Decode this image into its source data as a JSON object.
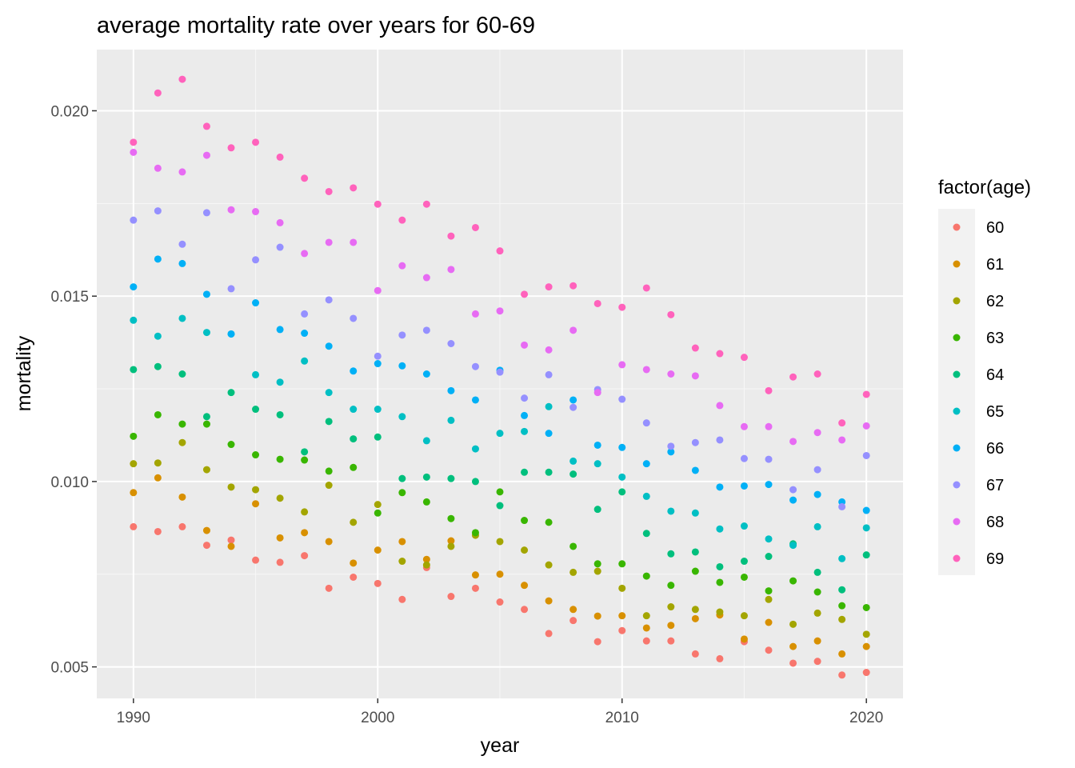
{
  "chart_data": {
    "type": "scatter",
    "title": "average mortality rate over years for 60-69",
    "xlabel": "year",
    "ylabel": "mortality",
    "xlim": [
      1988.5,
      2021.5
    ],
    "ylim": [
      0.00415,
      0.02165
    ],
    "x_ticks": [
      1990,
      2000,
      2010,
      2020
    ],
    "x_tick_labels": [
      "1990",
      "2000",
      "2010",
      "2020"
    ],
    "y_ticks": [
      0.005,
      0.01,
      0.015,
      0.02
    ],
    "y_tick_labels": [
      "0.005",
      "0.010",
      "0.015",
      "0.020"
    ],
    "grid": true,
    "legend_title": "factor(age)",
    "legend_position": "right",
    "x": [
      1990,
      1991,
      1992,
      1993,
      1994,
      1995,
      1996,
      1997,
      1998,
      1999,
      2000,
      2001,
      2002,
      2003,
      2004,
      2005,
      2006,
      2007,
      2008,
      2009,
      2010,
      2011,
      2012,
      2013,
      2014,
      2015,
      2016,
      2017,
      2018,
      2019,
      2020
    ],
    "series": [
      {
        "name": "60",
        "color": "#F8766D",
        "values": [
          0.00878,
          0.00865,
          0.00878,
          0.00828,
          0.00842,
          0.00788,
          0.00782,
          0.008,
          0.00712,
          0.00742,
          0.00725,
          0.00682,
          0.00768,
          0.0069,
          0.00712,
          0.00675,
          0.00655,
          0.0059,
          0.00625,
          0.00568,
          0.00598,
          0.0057,
          0.0057,
          0.00535,
          0.00522,
          0.00568,
          0.00545,
          0.0051,
          0.00515,
          0.00478,
          0.00485
        ]
      },
      {
        "name": "61",
        "color": "#D89000",
        "values": [
          0.0097,
          0.0101,
          0.00958,
          0.00868,
          0.00825,
          0.0094,
          0.00848,
          0.00862,
          0.00838,
          0.0078,
          0.00815,
          0.00838,
          0.0079,
          0.0084,
          0.00748,
          0.0075,
          0.0072,
          0.00678,
          0.00655,
          0.00637,
          0.00638,
          0.00605,
          0.00612,
          0.0063,
          0.0064,
          0.00575,
          0.0062,
          0.00555,
          0.0057,
          0.00535,
          0.00555
        ]
      },
      {
        "name": "62",
        "color": "#A3A500",
        "values": [
          0.01048,
          0.0105,
          0.01105,
          0.01032,
          0.00985,
          0.00978,
          0.00955,
          0.00918,
          0.0099,
          0.0089,
          0.00938,
          0.00785,
          0.00775,
          0.00825,
          0.00855,
          0.00838,
          0.00815,
          0.00775,
          0.00755,
          0.00758,
          0.00712,
          0.00638,
          0.00662,
          0.00655,
          0.00648,
          0.00638,
          0.00682,
          0.00615,
          0.00645,
          0.00628,
          0.00588
        ]
      },
      {
        "name": "63",
        "color": "#39B600",
        "values": [
          0.01122,
          0.0118,
          0.01155,
          0.01155,
          0.011,
          0.01072,
          0.0106,
          0.01058,
          0.01028,
          0.01038,
          0.00915,
          0.0097,
          0.00945,
          0.009,
          0.00862,
          0.00972,
          0.00895,
          0.0089,
          0.00825,
          0.00778,
          0.00778,
          0.00745,
          0.0072,
          0.00758,
          0.00728,
          0.00742,
          0.00705,
          0.00732,
          0.00702,
          0.00665,
          0.0066
        ]
      },
      {
        "name": "64",
        "color": "#00BF7D",
        "values": [
          0.01302,
          0.0131,
          0.0129,
          0.01175,
          0.0124,
          0.01195,
          0.0118,
          0.0108,
          0.01162,
          0.01115,
          0.0112,
          0.01008,
          0.01012,
          0.01008,
          0.01,
          0.00935,
          0.01025,
          0.01025,
          0.0102,
          0.00925,
          0.00972,
          0.0086,
          0.00805,
          0.0081,
          0.0077,
          0.00785,
          0.00798,
          0.00832,
          0.00755,
          0.00708,
          0.00802
        ]
      },
      {
        "name": "65",
        "color": "#00BFC4",
        "values": [
          0.01435,
          0.01392,
          0.0144,
          0.01402,
          0.01398,
          0.01288,
          0.01268,
          0.01325,
          0.0124,
          0.01195,
          0.01195,
          0.01175,
          0.0111,
          0.01165,
          0.01088,
          0.0113,
          0.01135,
          0.01202,
          0.01055,
          0.01048,
          0.01012,
          0.0096,
          0.0092,
          0.00915,
          0.00872,
          0.0088,
          0.00845,
          0.00828,
          0.00878,
          0.00792,
          0.00875
        ]
      },
      {
        "name": "66",
        "color": "#00B0F6",
        "values": [
          0.01525,
          0.016,
          0.01588,
          0.01505,
          0.01398,
          0.01482,
          0.0141,
          0.014,
          0.01365,
          0.01298,
          0.01318,
          0.01312,
          0.0129,
          0.01245,
          0.0122,
          0.013,
          0.01178,
          0.0113,
          0.0122,
          0.01098,
          0.01092,
          0.01048,
          0.0108,
          0.0103,
          0.00985,
          0.00988,
          0.00992,
          0.0095,
          0.00965,
          0.00945,
          0.00922
        ]
      },
      {
        "name": "67",
        "color": "#9590FF",
        "values": [
          0.01705,
          0.0173,
          0.0164,
          0.01725,
          0.0152,
          0.01598,
          0.01632,
          0.01452,
          0.0149,
          0.0144,
          0.01338,
          0.01395,
          0.01408,
          0.01372,
          0.0131,
          0.01295,
          0.01225,
          0.01288,
          0.012,
          0.01248,
          0.01222,
          0.01158,
          0.01095,
          0.01105,
          0.01112,
          0.01062,
          0.0106,
          0.00978,
          0.01032,
          0.00932,
          0.0107
        ]
      },
      {
        "name": "68",
        "color": "#E76BF3",
        "values": [
          0.01888,
          0.01845,
          0.01835,
          0.0188,
          0.01733,
          0.01728,
          0.01698,
          0.01615,
          0.01645,
          0.01645,
          0.01515,
          0.01582,
          0.0155,
          0.01572,
          0.01452,
          0.0146,
          0.01368,
          0.01355,
          0.01408,
          0.0124,
          0.01315,
          0.01302,
          0.0129,
          0.01285,
          0.01205,
          0.01148,
          0.01148,
          0.01108,
          0.01132,
          0.01112,
          0.0115
        ]
      },
      {
        "name": "69",
        "color": "#FF62BC",
        "values": [
          0.01915,
          0.02048,
          0.02085,
          0.01958,
          0.019,
          0.01915,
          0.01875,
          0.01818,
          0.01782,
          0.01792,
          0.01748,
          0.01705,
          0.01748,
          0.01662,
          0.01685,
          0.01622,
          0.01505,
          0.01525,
          0.01528,
          0.0148,
          0.0147,
          0.01522,
          0.0145,
          0.0136,
          0.01345,
          0.01335,
          0.01245,
          0.01282,
          0.0129,
          0.01158,
          0.01235
        ]
      }
    ]
  }
}
